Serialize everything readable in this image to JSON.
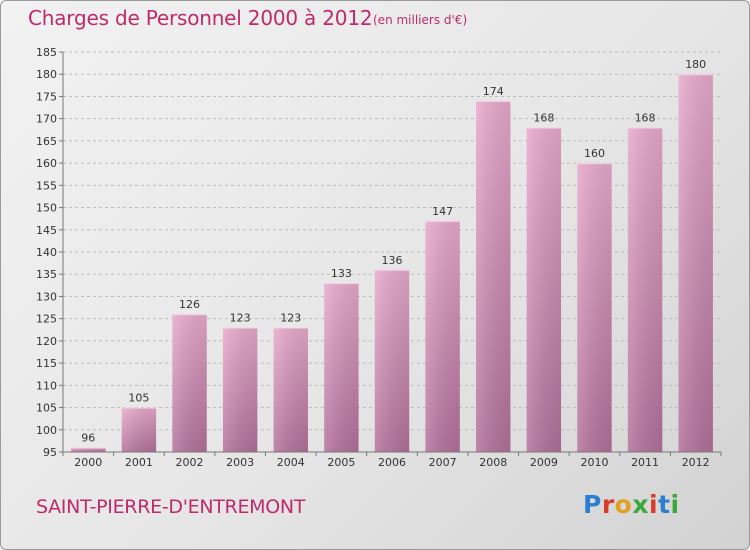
{
  "header": {
    "title": "Charges de Personnel 2000 à 2012",
    "subtitle": "(en milliers d'€)"
  },
  "footer": {
    "commune": "SAINT-PIERRE-D'ENTREMONT",
    "brand": "Proxiti",
    "brand_colors": [
      "#2a7fd1",
      "#d93a2a",
      "#e0a020",
      "#3aa83a",
      "#d93a2a",
      "#2a7fd1",
      "#3aa83a"
    ]
  },
  "colors": {
    "bar_top": "#e7a9cb",
    "bar_bottom": "#b2709a",
    "accent": "#c02a6a"
  },
  "chart_data": {
    "type": "bar",
    "categories": [
      "2000",
      "2001",
      "2002",
      "2003",
      "2004",
      "2005",
      "2006",
      "2007",
      "2008",
      "2009",
      "2010",
      "2011",
      "2012"
    ],
    "values": [
      96,
      105,
      126,
      123,
      123,
      133,
      136,
      147,
      174,
      168,
      160,
      168,
      180
    ],
    "title": "Charges de Personnel 2000 à 2012",
    "subtitle": "(en milliers d'€)",
    "xlabel": "",
    "ylabel": "",
    "ylim": [
      95,
      185
    ],
    "yticks": [
      95,
      100,
      105,
      110,
      115,
      120,
      125,
      130,
      135,
      140,
      145,
      150,
      155,
      160,
      165,
      170,
      175,
      180,
      185
    ],
    "grid": true
  }
}
